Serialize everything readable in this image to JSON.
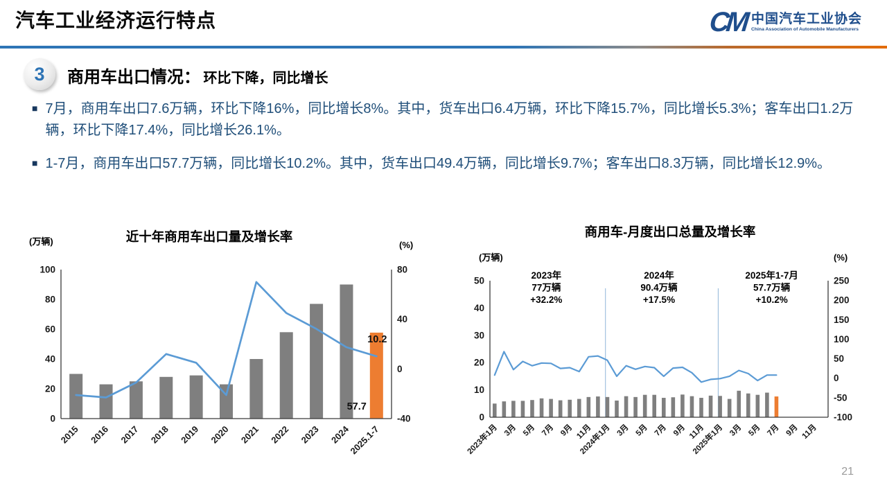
{
  "header": {
    "title": "汽车工业经济运行特点",
    "logo": {
      "monogram": "CM",
      "org_cn": "中国汽车工业协会",
      "org_en": "China Association of Automobile Manufacturers"
    }
  },
  "section": {
    "number": "3",
    "title": "商用车出口情况：",
    "subtitle": "环比下降，同比增长"
  },
  "bullet_glyph": "■",
  "bullets": [
    "7月，商用车出口7.6万辆，环比下降16%，同比增长8%。其中，货车出口6.4万辆，环比下降15.7%，同比增长5.3%；客车出口1.2万辆，环比下降17.4%，同比增长26.1%。",
    "1-7月，商用车出口57.7万辆，同比增长10.2%。其中，货车出口49.4万辆，同比增长9.7%；客车出口8.3万辆，同比增长12.9%。"
  ],
  "page_number": "21",
  "colors": {
    "bar_gray": "#7F7F7F",
    "bar_orange": "#ED7D31",
    "line_blue": "#5B9BD5",
    "divider_light_blue": "#8FB4D9",
    "axis_dark": "#3a3a3a",
    "tick_text": "#1a1a1a",
    "text_navy": "#1F4E79"
  },
  "chart_data": [
    {
      "type": "bar+line",
      "title": "近十年商用车出口量及增长率",
      "left_axis": {
        "label": "(万辆)",
        "lim": [
          0,
          100
        ],
        "ticks": [
          0,
          20,
          40,
          60,
          80,
          100
        ]
      },
      "right_axis": {
        "label": "(%)",
        "lim": [
          -40,
          80
        ],
        "ticks": [
          -40,
          0,
          40,
          80
        ]
      },
      "categories": [
        "2015",
        "2016",
        "2017",
        "2018",
        "2019",
        "2020",
        "2021",
        "2022",
        "2023",
        "2024",
        "2025.1-7"
      ],
      "series": [
        {
          "name": "出口量(万辆)",
          "type": "bar",
          "values": [
            30,
            23,
            25,
            28,
            29,
            23,
            40,
            58,
            77,
            90,
            57.7
          ]
        },
        {
          "name": "增长率(%)",
          "type": "line",
          "values": [
            -21,
            -23,
            -11,
            12,
            5,
            -21,
            70,
            45,
            32.2,
            17.5,
            10.2
          ]
        }
      ],
      "highlight_index": 10,
      "point_labels": [
        {
          "text": "10.2",
          "anchor": "line-end"
        },
        {
          "text": "57.7",
          "anchor": "bar-bottom"
        }
      ],
      "grid": false,
      "legend": "none"
    },
    {
      "type": "bar+line",
      "title": "商用车-月度出口总量及增长率",
      "left_axis": {
        "label": "(万辆)",
        "lim": [
          0,
          50
        ],
        "ticks": [
          0,
          10,
          20,
          30,
          40,
          50
        ]
      },
      "right_axis": {
        "label": "(%)",
        "lim": [
          -100,
          250
        ],
        "ticks": [
          -100,
          -50,
          0,
          50,
          100,
          150,
          200,
          250
        ]
      },
      "slots": 36,
      "x_tick_labels": [
        "2023年1月",
        "3月",
        "5月",
        "7月",
        "9月",
        "11月",
        "2024年1月",
        "3月",
        "5月",
        "7月",
        "9月",
        "11月",
        "2025年1月",
        "3月",
        "5月",
        "7月",
        "9月",
        "11月"
      ],
      "x_tick_step": 2,
      "series": [
        {
          "name": "月度出口量(万辆)",
          "type": "bar",
          "values": [
            5.0,
            5.8,
            6.0,
            6.0,
            6.3,
            6.9,
            6.7,
            6.2,
            6.4,
            6.7,
            7.4,
            7.6,
            7.4,
            6.1,
            7.7,
            7.4,
            8.2,
            8.2,
            7.1,
            7.3,
            8.3,
            7.7,
            7.1,
            7.9,
            7.8,
            6.7,
            9.7,
            8.7,
            8.2,
            9.0,
            7.6
          ]
        },
        {
          "name": "增长率(%)",
          "type": "line",
          "values": [
            8,
            68,
            22,
            43,
            32,
            39,
            38,
            25,
            27,
            17,
            55,
            57,
            46,
            5,
            32,
            23,
            30,
            27,
            5,
            26,
            28,
            14,
            -10,
            -3,
            -1,
            5,
            20,
            12,
            -6,
            8,
            8
          ]
        }
      ],
      "highlight_index": 30,
      "dividers": [
        12,
        24
      ],
      "annotations": [
        {
          "lines": [
            "2023年",
            "77万辆",
            "+32.2%"
          ],
          "slot_center": 6
        },
        {
          "lines": [
            "2024年",
            "90.4万辆",
            "+17.5%"
          ],
          "slot_center": 18
        },
        {
          "lines": [
            "2025年1-7月",
            "57.7万辆",
            "+10.2%"
          ],
          "slot_center": 30
        }
      ],
      "grid": false,
      "legend": "none"
    }
  ]
}
